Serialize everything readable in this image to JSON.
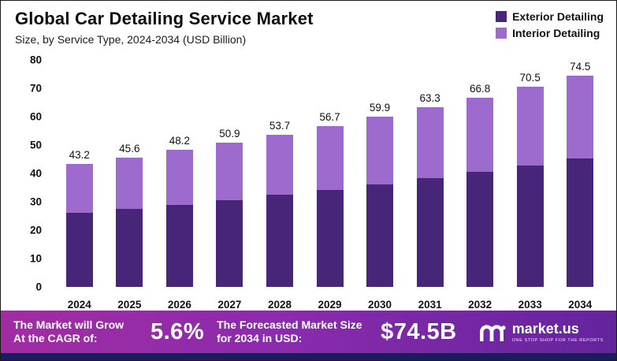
{
  "header": {
    "title": "Global Car Detailing Service Market",
    "subtitle": "Size, by Service Type, 2024-2034 (USD Billion)"
  },
  "legend": [
    {
      "label": "Exterior Detailing",
      "color": "#472578"
    },
    {
      "label": "Interior Detailing",
      "color": "#9d6bce"
    }
  ],
  "chart_data": {
    "type": "bar",
    "stacked": true,
    "title": "Global Car Detailing Service Market",
    "subtitle": "Size, by Service Type, 2024-2034 (USD Billion)",
    "categories": [
      "2024",
      "2025",
      "2026",
      "2027",
      "2028",
      "2029",
      "2030",
      "2031",
      "2032",
      "2033",
      "2034"
    ],
    "series": [
      {
        "name": "Exterior Detailing",
        "color": "#472578",
        "values": [
          26.0,
          27.5,
          29.0,
          30.6,
          32.4,
          34.3,
          36.2,
          38.4,
          40.6,
          42.9,
          45.4
        ]
      },
      {
        "name": "Interior Detailing",
        "color": "#9d6bce",
        "values": [
          17.2,
          18.1,
          19.2,
          20.3,
          21.3,
          22.4,
          23.7,
          24.9,
          26.2,
          27.6,
          29.1
        ]
      }
    ],
    "totals": [
      43.2,
      45.6,
      48.2,
      50.9,
      53.7,
      56.7,
      59.9,
      63.3,
      66.8,
      70.5,
      74.5
    ],
    "xlabel": "",
    "ylabel": "",
    "ylim": [
      0,
      80
    ],
    "yticks": [
      0,
      10,
      20,
      30,
      40,
      50,
      60,
      70,
      80
    ],
    "grid": false,
    "legend_position": "top-right"
  },
  "footer": {
    "cagr_label": "The Market will Grow At the CAGR of:",
    "cagr_value": "5.6%",
    "forecast_label": "The Forecasted Market Size for 2034 in USD:",
    "forecast_value": "$74.5B",
    "brand": "market.us",
    "brand_tagline": "ONE STOP SHOP FOR THE REPORTS"
  },
  "colors": {
    "banner_gradient_left": "#a12ca1",
    "banner_gradient_mid": "#8b2bad",
    "banner_gradient_right": "#63249c",
    "bottom_strip": "#1e1a5e"
  }
}
